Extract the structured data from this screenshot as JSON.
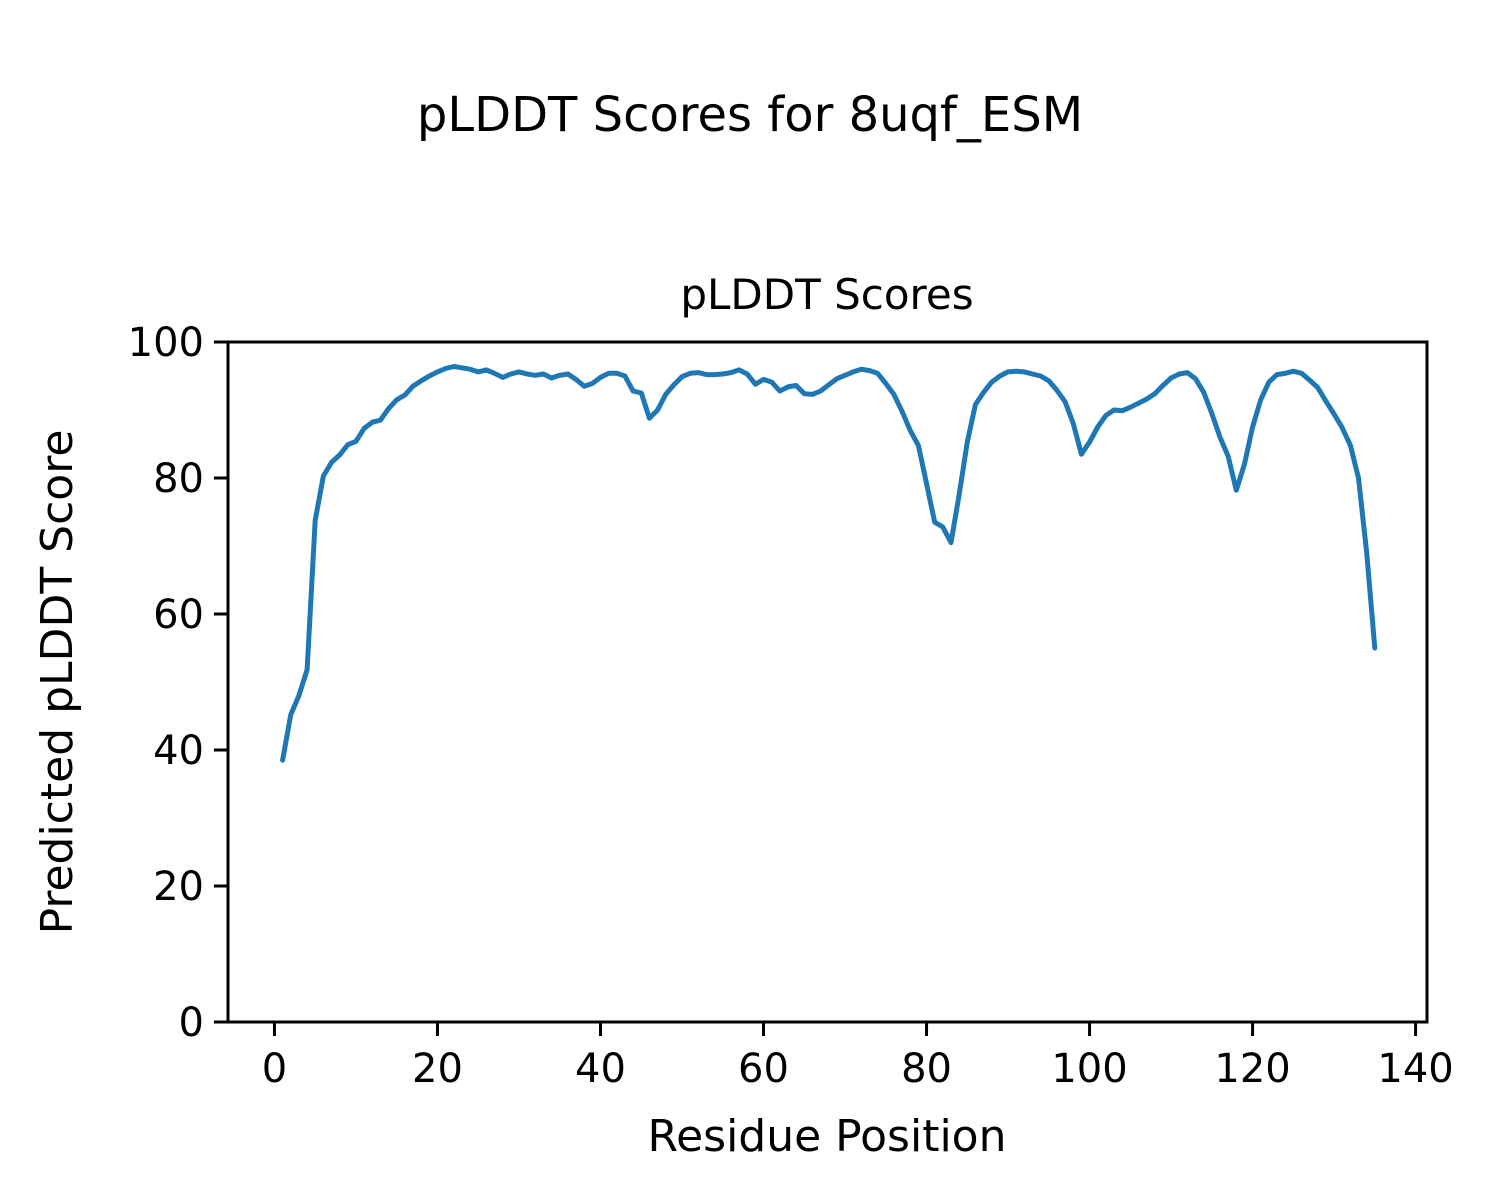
{
  "figure": {
    "suptitle": "pLDDT Scores for 8uqf_ESM"
  },
  "chart_data": {
    "type": "line",
    "title": "pLDDT Scores",
    "xlabel": "Residue Position",
    "ylabel": "Predicted pLDDT Score",
    "line_color": "#1f77b4",
    "axis_color": "#000000",
    "background_color": "#ffffff",
    "grid": false,
    "legend": null,
    "xlim": [
      -5.7,
      141.4
    ],
    "ylim": [
      0,
      100
    ],
    "xticks": [
      0,
      20,
      40,
      60,
      80,
      100,
      120,
      140
    ],
    "yticks": [
      0,
      20,
      40,
      60,
      80,
      100
    ],
    "x": [
      1,
      2,
      3,
      4,
      5,
      6,
      7,
      8,
      9,
      10,
      11,
      12,
      13,
      14,
      15,
      16,
      17,
      18,
      19,
      20,
      21,
      22,
      23,
      24,
      25,
      26,
      27,
      28,
      29,
      30,
      31,
      32,
      33,
      34,
      35,
      36,
      37,
      38,
      39,
      40,
      41,
      42,
      43,
      44,
      45,
      46,
      47,
      48,
      49,
      50,
      51,
      52,
      53,
      54,
      55,
      56,
      57,
      58,
      59,
      60,
      61,
      62,
      63,
      64,
      65,
      66,
      67,
      68,
      69,
      70,
      71,
      72,
      73,
      74,
      75,
      76,
      77,
      78,
      79,
      80,
      81,
      82,
      83,
      84,
      85,
      86,
      87,
      88,
      89,
      90,
      91,
      92,
      93,
      94,
      95,
      96,
      97,
      98,
      99,
      100,
      101,
      102,
      103,
      104,
      105,
      106,
      107,
      108,
      109,
      110,
      111,
      112,
      113,
      114,
      115,
      116,
      117,
      118,
      119,
      120,
      121,
      122,
      123,
      124,
      125,
      126,
      127,
      128,
      129,
      130,
      131,
      132,
      133,
      134,
      135
    ],
    "values": [
      38.5,
      45.2,
      48.0,
      51.8,
      73.8,
      80.3,
      82.3,
      83.4,
      84.9,
      85.4,
      87.3,
      88.2,
      88.5,
      90.2,
      91.5,
      92.2,
      93.5,
      94.3,
      95.0,
      95.6,
      96.1,
      96.4,
      96.2,
      96.0,
      95.6,
      95.9,
      95.4,
      94.8,
      95.3,
      95.6,
      95.3,
      95.1,
      95.3,
      94.7,
      95.1,
      95.3,
      94.5,
      93.5,
      93.9,
      94.8,
      95.4,
      95.4,
      95.0,
      92.8,
      92.5,
      88.8,
      90.0,
      92.3,
      93.7,
      94.9,
      95.4,
      95.5,
      95.2,
      95.2,
      95.3,
      95.5,
      95.9,
      95.3,
      93.8,
      94.5,
      94.1,
      92.8,
      93.4,
      93.6,
      92.4,
      92.3,
      92.8,
      93.7,
      94.6,
      95.1,
      95.6,
      96.0,
      95.8,
      95.4,
      93.9,
      92.3,
      89.8,
      87.0,
      84.8,
      79.2,
      73.5,
      72.8,
      70.5,
      77.5,
      85.3,
      90.8,
      92.6,
      94.1,
      95.0,
      95.6,
      95.7,
      95.6,
      95.3,
      95.0,
      94.3,
      92.9,
      91.2,
      88.0,
      83.5,
      85.3,
      87.5,
      89.2,
      90.0,
      89.9,
      90.4,
      91.0,
      91.6,
      92.4,
      93.6,
      94.7,
      95.3,
      95.5,
      94.6,
      92.6,
      89.5,
      86.0,
      83.2,
      78.2,
      82.0,
      87.5,
      91.5,
      94.1,
      95.2,
      95.4,
      95.7,
      95.4,
      94.4,
      93.3,
      91.3,
      89.4,
      87.4,
      84.8,
      80.0,
      69.0,
      55.0
    ]
  }
}
